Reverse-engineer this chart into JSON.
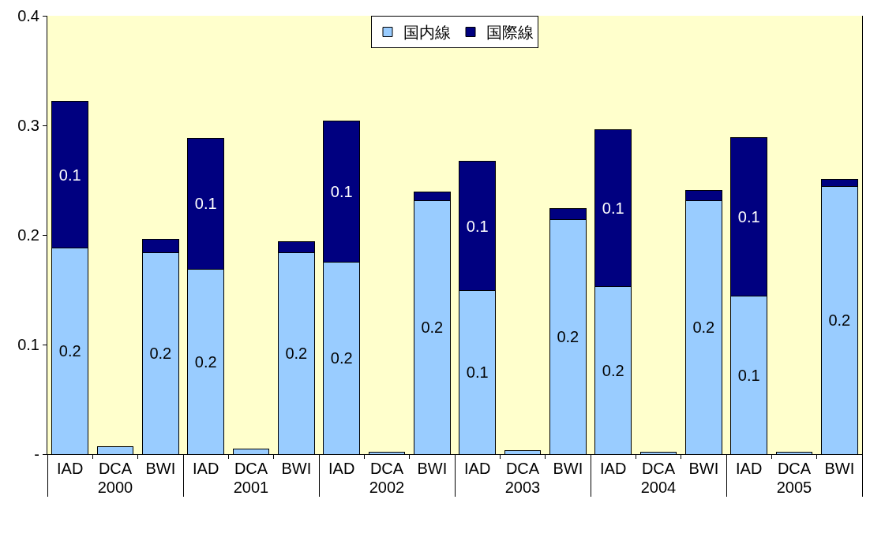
{
  "chart_data": {
    "type": "bar",
    "stacked": true,
    "categories": [
      "IAD",
      "DCA",
      "BWI",
      "IAD",
      "DCA",
      "BWI",
      "IAD",
      "DCA",
      "BWI",
      "IAD",
      "DCA",
      "BWI",
      "IAD",
      "DCA",
      "BWI",
      "IAD",
      "DCA",
      "BWI"
    ],
    "annotations": [
      "2000",
      "2001",
      "2002",
      "2003",
      "2004",
      "2005"
    ],
    "series": [
      {
        "name": "国内線",
        "color": "#99ccff",
        "values": [
          0.188,
          0.007,
          0.184,
          0.169,
          0.005,
          0.184,
          0.175,
          0.002,
          0.231,
          0.149,
          0.003,
          0.214,
          0.153,
          0.002,
          0.231,
          0.144,
          0.002,
          0.244
        ],
        "value_labels": [
          "0.2",
          null,
          "0.2",
          "0.2",
          null,
          "0.2",
          "0.2",
          null,
          "0.2",
          "0.1",
          null,
          "0.2",
          "0.2",
          null,
          "0.2",
          "0.1",
          null,
          "0.2"
        ]
      },
      {
        "name": "国際線",
        "color": "#000080",
        "values": [
          0.134,
          null,
          0.012,
          0.119,
          null,
          0.01,
          0.129,
          null,
          0.008,
          0.118,
          null,
          0.01,
          0.143,
          null,
          0.01,
          0.145,
          null,
          0.007
        ],
        "value_labels": [
          "0.1",
          null,
          null,
          "0.1",
          null,
          null,
          "0.1",
          null,
          null,
          "0.1",
          null,
          null,
          "0.1",
          null,
          null,
          "0.1",
          null,
          null
        ]
      }
    ],
    "ylim": [
      0,
      0.4
    ],
    "yticks": [
      {
        "value": 0,
        "label": "-"
      },
      0.1,
      0.2,
      0.3,
      0.4
    ],
    "grid": false,
    "legend": "top"
  }
}
